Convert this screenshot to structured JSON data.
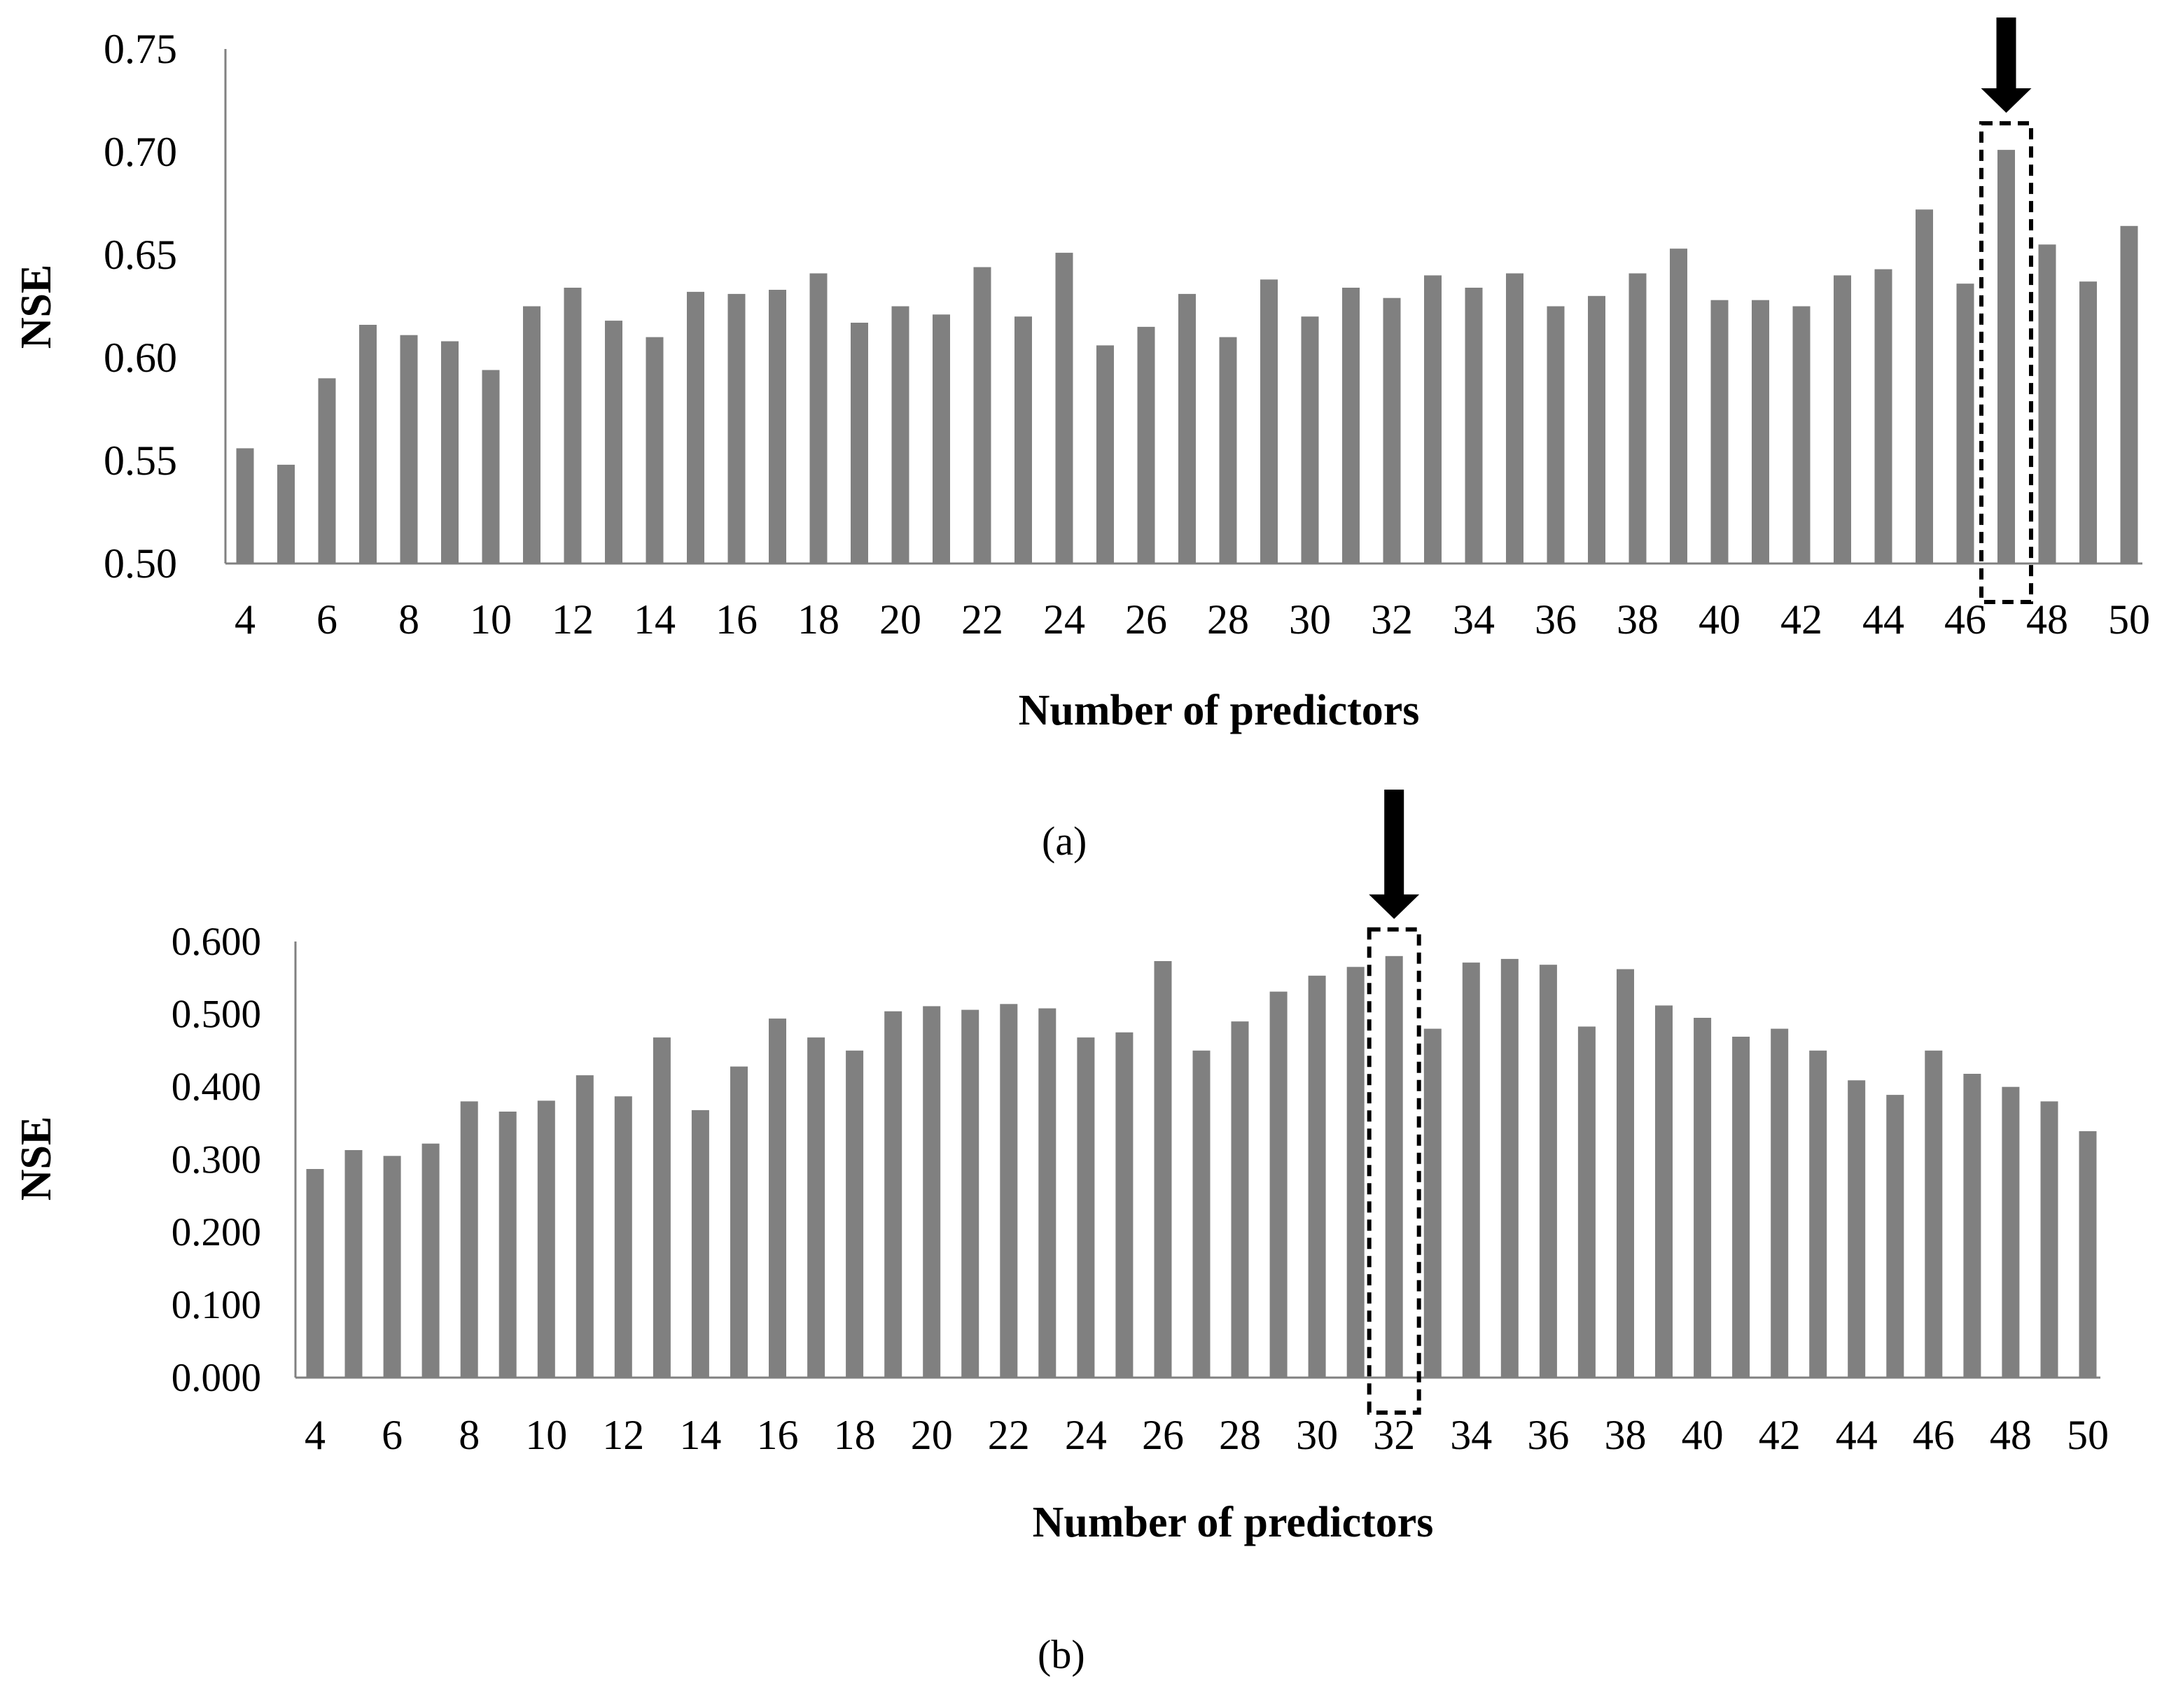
{
  "colors": {
    "bar": "#808080",
    "axis": "#808080",
    "text": "#000000",
    "highlight": "#000000"
  },
  "panels": [
    {
      "label": "(a)"
    },
    {
      "label": "(b)"
    }
  ],
  "chart_data": [
    {
      "type": "bar",
      "xlabel": "Number of predictors",
      "ylabel": "NSE",
      "x": [
        4,
        5,
        6,
        7,
        8,
        9,
        10,
        11,
        12,
        13,
        14,
        15,
        16,
        17,
        18,
        19,
        20,
        21,
        22,
        23,
        24,
        25,
        26,
        27,
        28,
        29,
        30,
        31,
        32,
        33,
        34,
        35,
        36,
        37,
        38,
        39,
        40,
        41,
        42,
        43,
        44,
        45,
        46,
        47,
        48,
        49,
        50
      ],
      "values": [
        0.556,
        0.548,
        0.59,
        0.616,
        0.611,
        0.608,
        0.594,
        0.625,
        0.634,
        0.618,
        0.61,
        0.632,
        0.631,
        0.633,
        0.641,
        0.617,
        0.625,
        0.621,
        0.644,
        0.62,
        0.651,
        0.606,
        0.615,
        0.631,
        0.61,
        0.638,
        0.62,
        0.634,
        0.629,
        0.64,
        0.634,
        0.641,
        0.625,
        0.63,
        0.641,
        0.653,
        0.628,
        0.628,
        0.625,
        0.64,
        0.643,
        0.672,
        0.636,
        0.701,
        0.655,
        0.637,
        0.664
      ],
      "x_tick_labels": [
        "4",
        "6",
        "8",
        "10",
        "12",
        "14",
        "16",
        "18",
        "20",
        "22",
        "24",
        "26",
        "28",
        "30",
        "32",
        "34",
        "36",
        "38",
        "40",
        "42",
        "44",
        "46",
        "48",
        "50"
      ],
      "y_tick_labels": [
        "0.50",
        "0.55",
        "0.60",
        "0.65",
        "0.70",
        "0.75"
      ],
      "ylim": [
        0.5,
        0.75
      ],
      "highlight_x": 47,
      "grid": false,
      "legend": "none"
    },
    {
      "type": "bar",
      "xlabel": "Number of predictors",
      "ylabel": "NSE",
      "x": [
        4,
        5,
        6,
        7,
        8,
        9,
        10,
        11,
        12,
        13,
        14,
        15,
        16,
        17,
        18,
        19,
        20,
        21,
        22,
        23,
        24,
        25,
        26,
        27,
        28,
        29,
        30,
        31,
        32,
        33,
        34,
        35,
        36,
        37,
        38,
        39,
        40,
        41,
        42,
        43,
        44,
        45,
        46,
        47,
        48,
        49,
        50
      ],
      "values": [
        0.287,
        0.313,
        0.305,
        0.322,
        0.38,
        0.366,
        0.381,
        0.416,
        0.387,
        0.468,
        0.368,
        0.428,
        0.494,
        0.468,
        0.45,
        0.504,
        0.511,
        0.506,
        0.514,
        0.508,
        0.468,
        0.475,
        0.573,
        0.45,
        0.49,
        0.531,
        0.553,
        0.565,
        0.58,
        0.48,
        0.571,
        0.576,
        0.568,
        0.483,
        0.562,
        0.512,
        0.495,
        0.469,
        0.48,
        0.45,
        0.409,
        0.389,
        0.45,
        0.418,
        0.4,
        0.38,
        0.339
      ],
      "x_tick_labels": [
        "4",
        "6",
        "8",
        "10",
        "12",
        "14",
        "16",
        "18",
        "20",
        "22",
        "24",
        "26",
        "28",
        "30",
        "32",
        "34",
        "36",
        "38",
        "40",
        "42",
        "44",
        "46",
        "48",
        "50"
      ],
      "y_tick_labels": [
        "0.000",
        "0.100",
        "0.200",
        "0.300",
        "0.400",
        "0.500",
        "0.600"
      ],
      "ylim": [
        0,
        0.6
      ],
      "highlight_x": 32,
      "grid": false,
      "legend": "none"
    }
  ]
}
